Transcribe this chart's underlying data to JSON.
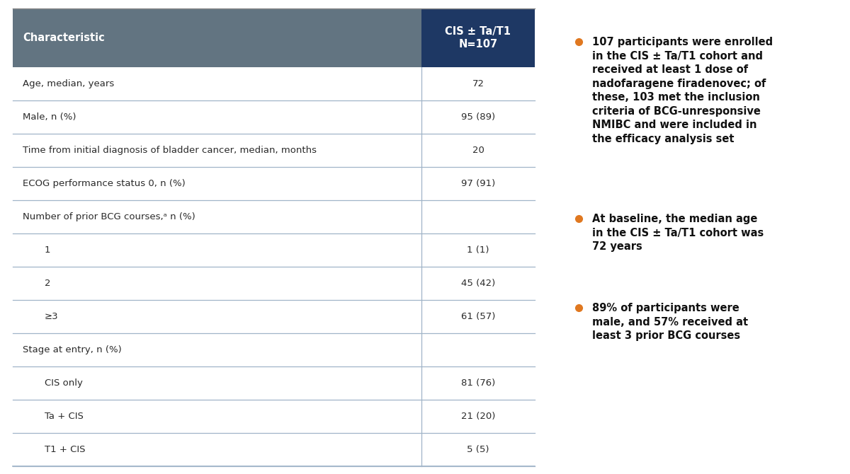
{
  "header_char_text": "Characteristic",
  "header_col_text": "CIS ± Ta/T1\nN=107",
  "header_char_bg": "#627481",
  "header_col_bg": "#1e3864",
  "header_text_color": "#ffffff",
  "line_color": "#a0b4c8",
  "rows": [
    {
      "label": "Age, median, years",
      "value": "72",
      "indent": 0,
      "header_row": false
    },
    {
      "label": "Male, n (%)",
      "value": "95 (89)",
      "indent": 0,
      "header_row": false
    },
    {
      "label": "Time from initial diagnosis of bladder cancer, median, months",
      "value": "20",
      "indent": 0,
      "header_row": false
    },
    {
      "label": "ECOG performance status 0, n (%)",
      "value": "97 (91)",
      "indent": 0,
      "header_row": false
    },
    {
      "label": "Number of prior BCG courses,ᵃ n (%)",
      "value": "",
      "indent": 0,
      "header_row": true
    },
    {
      "label": "1",
      "value": "1 (1)",
      "indent": 1,
      "header_row": false
    },
    {
      "label": "2",
      "value": "45 (42)",
      "indent": 1,
      "header_row": false
    },
    {
      "label": "≥3",
      "value": "61 (57)",
      "indent": 1,
      "header_row": false
    },
    {
      "label": "Stage at entry, n (%)",
      "value": "",
      "indent": 0,
      "header_row": true
    },
    {
      "label": "CIS only",
      "value": "81 (76)",
      "indent": 1,
      "header_row": false
    },
    {
      "label": "Ta + CIS",
      "value": "21 (20)",
      "indent": 1,
      "header_row": false
    },
    {
      "label": "T1 + CIS",
      "value": "5 (5)",
      "indent": 1,
      "header_row": false
    }
  ],
  "bullet_points": [
    "107 participants were enrolled\nin the CIS ± Ta/T1 cohort and\nreceived at least 1 dose of\nnadofaragene firadenovec; of\nthese, 103 met the inclusion\ncriteria of BCG-unresponsive\nNMIBC and were included in\nthe efficacy analysis set",
    "At baseline, the median age\nin the CIS ± Ta/T1 cohort was\n72 years",
    "89% of participants were\nmale, and 57% received at\nleast 3 prior BCG courses"
  ],
  "bullet_color": "#e07820",
  "text_color": "#2a2a2a",
  "font_size_header": 10.5,
  "font_size_row": 9.5,
  "font_size_bullet": 10.5
}
